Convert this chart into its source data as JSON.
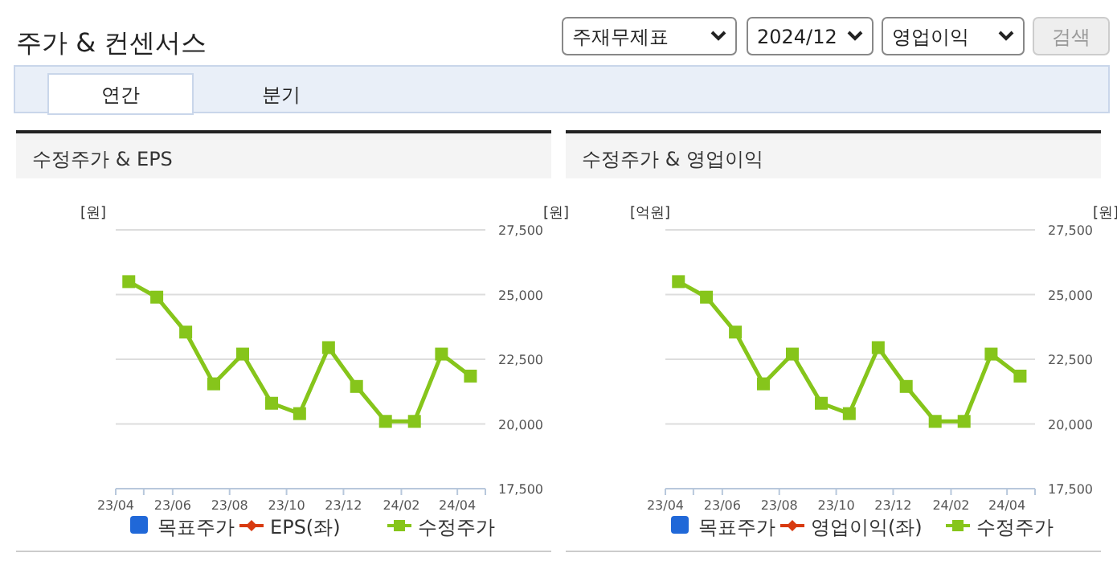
{
  "chart_data": [
    {
      "type": "other",
      "title": "주가 & 컨센서스",
      "annotations": [
        "주재무제표",
        "2024/12",
        "영업이익",
        "검색",
        "연간",
        "분기"
      ]
    },
    {
      "type": "line",
      "title": "수정주가 & EPS",
      "ylabel": "[원]",
      "y2label": "[원]",
      "x": [
        "2023-04-15",
        "2023-05-15",
        "2023-06-15",
        "2023-07-15",
        "2023-08-15",
        "2023-09-15",
        "2023-10-15",
        "2023-11-15",
        "2023-12-15",
        "2024-01-15",
        "2024-02-15",
        "2024-03-15",
        "2024-04-15"
      ],
      "xlim": [
        "2023-04-01",
        "2024-05-01"
      ],
      "xticks": [
        {
          "value": "2023-04-01",
          "label": "23/04"
        },
        {
          "value": "2023-05-01",
          "label": null
        },
        {
          "value": "2023-06-01",
          "label": "23/06"
        },
        {
          "value": "2023-08-01",
          "label": "23/08"
        },
        {
          "value": "2023-10-01",
          "label": "23/10"
        },
        {
          "value": "2023-12-01",
          "label": "23/12"
        },
        {
          "value": "2024-02-01",
          "label": "24/02"
        },
        {
          "value": "2024-04-01",
          "label": "24/04"
        },
        {
          "value": "2024-05-01",
          "label": null
        }
      ],
      "y2lim": [
        17500,
        27500
      ],
      "y2ticks": [
        {
          "value": 17500,
          "label": "17,500"
        },
        {
          "value": 20000,
          "label": "20,000"
        },
        {
          "value": 22500,
          "label": "22,500"
        },
        {
          "value": 25000,
          "label": "25,000"
        },
        {
          "value": 27500,
          "label": "27,500"
        }
      ],
      "grid": "y",
      "legend": "bottom",
      "marker": "square",
      "series": [
        {
          "name": "목표주가",
          "type": "bar",
          "color": "#2068d8",
          "values": [
            null,
            null,
            null,
            null,
            null,
            null,
            null,
            null,
            null,
            null,
            null,
            null,
            null
          ]
        },
        {
          "name": "EPS(좌)",
          "type": "line",
          "marker": "diamond",
          "color": "#d83a10",
          "values": [
            null,
            null,
            null,
            null,
            null,
            null,
            null,
            null,
            null,
            null,
            null,
            null,
            null
          ]
        },
        {
          "name": "수정주가",
          "type": "line",
          "axis": "y2",
          "color": "#86c51b",
          "values": [
            25500,
            24900,
            23550,
            21550,
            22700,
            20800,
            20400,
            22950,
            21450,
            20100,
            20100,
            22700,
            21850
          ]
        }
      ]
    },
    {
      "type": "line",
      "title": "수정주가 & 영업이익",
      "ylabel": "[억원]",
      "y2label": "[원]",
      "x": [
        "2023-04-15",
        "2023-05-15",
        "2023-06-15",
        "2023-07-15",
        "2023-08-15",
        "2023-09-15",
        "2023-10-15",
        "2023-11-15",
        "2023-12-15",
        "2024-01-15",
        "2024-02-15",
        "2024-03-15",
        "2024-04-15"
      ],
      "xlim": [
        "2023-04-01",
        "2024-05-01"
      ],
      "xticks": [
        {
          "value": "2023-04-01",
          "label": "23/04"
        },
        {
          "value": "2023-05-01",
          "label": null
        },
        {
          "value": "2023-06-01",
          "label": "23/06"
        },
        {
          "value": "2023-08-01",
          "label": "23/08"
        },
        {
          "value": "2023-10-01",
          "label": "23/10"
        },
        {
          "value": "2023-12-01",
          "label": "23/12"
        },
        {
          "value": "2024-02-01",
          "label": "24/02"
        },
        {
          "value": "2024-04-01",
          "label": "24/04"
        },
        {
          "value": "2024-05-01",
          "label": null
        }
      ],
      "y2lim": [
        17500,
        27500
      ],
      "y2ticks": [
        {
          "value": 17500,
          "label": "17,500"
        },
        {
          "value": 20000,
          "label": "20,000"
        },
        {
          "value": 22500,
          "label": "22,500"
        },
        {
          "value": 25000,
          "label": "25,000"
        },
        {
          "value": 27500,
          "label": "27,500"
        }
      ],
      "grid": "y",
      "legend": "bottom",
      "marker": "square",
      "series": [
        {
          "name": "목표주가",
          "type": "bar",
          "color": "#2068d8",
          "values": [
            null,
            null,
            null,
            null,
            null,
            null,
            null,
            null,
            null,
            null,
            null,
            null,
            null
          ]
        },
        {
          "name": "영업이익(좌)",
          "type": "line",
          "marker": "diamond",
          "color": "#d83a10",
          "values": [
            null,
            null,
            null,
            null,
            null,
            null,
            null,
            null,
            null,
            null,
            null,
            null,
            null
          ]
        },
        {
          "name": "수정주가",
          "type": "line",
          "axis": "y2",
          "color": "#86c51b",
          "values": [
            25500,
            24900,
            23550,
            21550,
            22700,
            20800,
            20400,
            22950,
            21450,
            20100,
            20100,
            22700,
            21850
          ]
        }
      ]
    }
  ]
}
